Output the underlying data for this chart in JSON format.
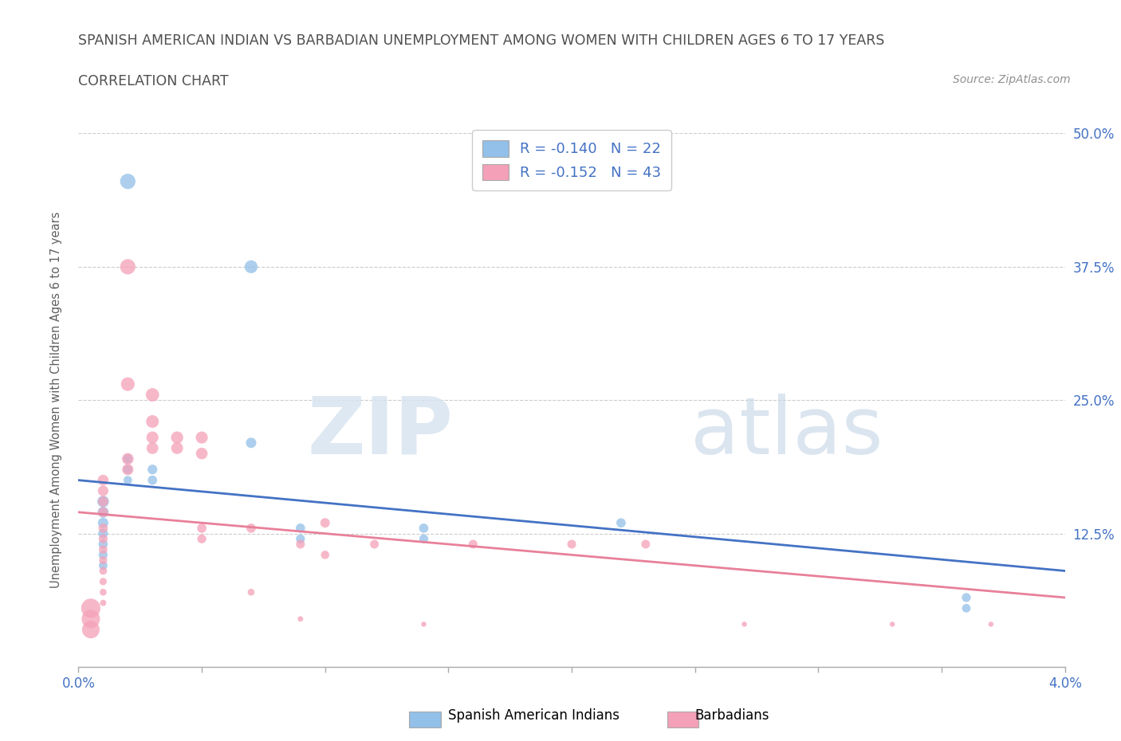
{
  "title": "SPANISH AMERICAN INDIAN VS BARBADIAN UNEMPLOYMENT AMONG WOMEN WITH CHILDREN AGES 6 TO 17 YEARS",
  "subtitle": "CORRELATION CHART",
  "source": "Source: ZipAtlas.com",
  "xlabel": "",
  "ylabel": "Unemployment Among Women with Children Ages 6 to 17 years",
  "xlim": [
    0.0,
    0.04
  ],
  "ylim": [
    0.0,
    0.5
  ],
  "xticks": [
    0.0,
    0.005,
    0.01,
    0.015,
    0.02,
    0.025,
    0.03,
    0.035,
    0.04
  ],
  "xtick_labels": [
    "0.0%",
    "",
    "",
    "",
    "",
    "",
    "",
    "",
    "4.0%"
  ],
  "ytick_labels": [
    "",
    "12.5%",
    "25.0%",
    "37.5%",
    "50.0%"
  ],
  "yticks": [
    0.0,
    0.125,
    0.25,
    0.375,
    0.5
  ],
  "legend_r1": "R = -0.140",
  "legend_n1": "N = 22",
  "legend_r2": "R = -0.152",
  "legend_n2": "N = 43",
  "color_blue": "#92C0E8",
  "color_pink": "#F4A0B8",
  "color_line_blue": "#4472C4",
  "color_line_pink": "#E8809A",
  "color_title": "#505050",
  "color_source": "#909090",
  "color_axis_label": "#606060",
  "color_tick_label_blue": "#4472C4",
  "watermark_zip": "ZIP",
  "watermark_atlas": "atlas",
  "blue_points": [
    [
      0.002,
      0.455
    ],
    [
      0.007,
      0.375
    ],
    [
      0.002,
      0.195
    ],
    [
      0.002,
      0.185
    ],
    [
      0.002,
      0.175
    ],
    [
      0.001,
      0.155
    ],
    [
      0.001,
      0.145
    ],
    [
      0.001,
      0.135
    ],
    [
      0.001,
      0.125
    ],
    [
      0.001,
      0.115
    ],
    [
      0.001,
      0.105
    ],
    [
      0.001,
      0.095
    ],
    [
      0.003,
      0.185
    ],
    [
      0.003,
      0.175
    ],
    [
      0.007,
      0.21
    ],
    [
      0.009,
      0.13
    ],
    [
      0.009,
      0.12
    ],
    [
      0.014,
      0.13
    ],
    [
      0.014,
      0.12
    ],
    [
      0.022,
      0.135
    ],
    [
      0.036,
      0.065
    ],
    [
      0.036,
      0.055
    ]
  ],
  "pink_points": [
    [
      0.002,
      0.375
    ],
    [
      0.002,
      0.265
    ],
    [
      0.003,
      0.255
    ],
    [
      0.003,
      0.23
    ],
    [
      0.004,
      0.215
    ],
    [
      0.004,
      0.205
    ],
    [
      0.002,
      0.195
    ],
    [
      0.002,
      0.185
    ],
    [
      0.001,
      0.175
    ],
    [
      0.001,
      0.165
    ],
    [
      0.001,
      0.155
    ],
    [
      0.001,
      0.145
    ],
    [
      0.001,
      0.13
    ],
    [
      0.001,
      0.12
    ],
    [
      0.001,
      0.11
    ],
    [
      0.001,
      0.1
    ],
    [
      0.001,
      0.09
    ],
    [
      0.001,
      0.08
    ],
    [
      0.001,
      0.07
    ],
    [
      0.001,
      0.06
    ],
    [
      0.0005,
      0.055
    ],
    [
      0.0005,
      0.045
    ],
    [
      0.0005,
      0.035
    ],
    [
      0.003,
      0.215
    ],
    [
      0.003,
      0.205
    ],
    [
      0.005,
      0.215
    ],
    [
      0.005,
      0.2
    ],
    [
      0.005,
      0.13
    ],
    [
      0.005,
      0.12
    ],
    [
      0.007,
      0.13
    ],
    [
      0.007,
      0.07
    ],
    [
      0.009,
      0.115
    ],
    [
      0.009,
      0.045
    ],
    [
      0.01,
      0.135
    ],
    [
      0.01,
      0.105
    ],
    [
      0.012,
      0.115
    ],
    [
      0.014,
      0.04
    ],
    [
      0.016,
      0.115
    ],
    [
      0.02,
      0.115
    ],
    [
      0.023,
      0.115
    ],
    [
      0.027,
      0.04
    ],
    [
      0.033,
      0.04
    ],
    [
      0.037,
      0.04
    ]
  ],
  "blue_sizes": [
    350,
    250,
    130,
    120,
    110,
    200,
    180,
    160,
    140,
    130,
    120,
    110,
    140,
    130,
    160,
    130,
    120,
    130,
    120,
    130,
    120,
    110
  ],
  "pink_sizes": [
    350,
    280,
    265,
    240,
    220,
    210,
    200,
    190,
    175,
    165,
    155,
    145,
    130,
    120,
    110,
    100,
    90,
    80,
    70,
    60,
    550,
    500,
    460,
    215,
    205,
    215,
    200,
    130,
    120,
    130,
    70,
    115,
    45,
    135,
    105,
    115,
    40,
    115,
    115,
    115,
    40,
    40,
    40
  ],
  "blue_trendline": [
    0.175,
    0.09
  ],
  "pink_trendline": [
    0.145,
    0.065
  ]
}
